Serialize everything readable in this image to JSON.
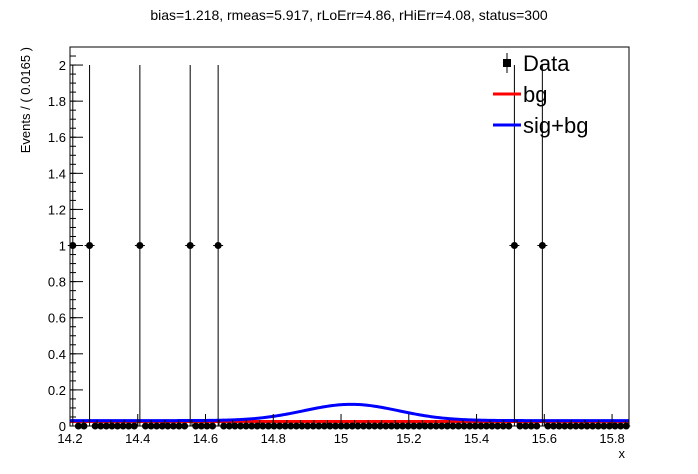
{
  "chart_data": {
    "type": "scatter",
    "title": "bias=1.218, rmeas=5.917, rLoErr=4.86, rHiErr=4.08, status=300",
    "xlabel": "x",
    "ylabel": "Events / ( 0.0165 )",
    "xlim": [
      14.2,
      15.85
    ],
    "ylim": [
      0,
      2.1
    ],
    "x_ticks": [
      14.2,
      14.4,
      14.6,
      14.8,
      15,
      15.2,
      15.4,
      15.6,
      15.8
    ],
    "x_tick_labels": [
      "14.2",
      "14.4",
      "14.6",
      "14.8",
      "15",
      "15.2",
      "15.4",
      "15.6",
      "15.8"
    ],
    "y_ticks": [
      0,
      0.2,
      0.4,
      0.6,
      0.8,
      1,
      1.2,
      1.4,
      1.6,
      1.8,
      2
    ],
    "y_tick_labels": [
      "0",
      "0.2",
      "0.4",
      "0.6",
      "0.8",
      "1",
      "1.2",
      "1.4",
      "1.6",
      "1.8",
      "2"
    ],
    "bin_width": 0.0165,
    "nonzero_points": [
      {
        "x": 14.2083,
        "y": 1
      },
      {
        "x": 14.2578,
        "y": 1
      },
      {
        "x": 14.4063,
        "y": 1
      },
      {
        "x": 14.5548,
        "y": 1
      },
      {
        "x": 14.6373,
        "y": 1
      },
      {
        "x": 15.5118,
        "y": 1
      },
      {
        "x": 15.5943,
        "y": 1
      }
    ],
    "series": [
      {
        "name": "Data",
        "kind": "points",
        "color": "#000000"
      },
      {
        "name": "bg",
        "kind": "line",
        "color": "#ff0000",
        "level": 0.025
      },
      {
        "name": "sig+bg",
        "kind": "line",
        "color": "#0000ff",
        "base": 0.03,
        "peak_x": 15.03,
        "peak_height": 0.09,
        "sigma": 0.14
      }
    ],
    "legend": {
      "position": "top-right",
      "entries": [
        "Data",
        "bg",
        "sig+bg"
      ]
    },
    "grid": false
  }
}
